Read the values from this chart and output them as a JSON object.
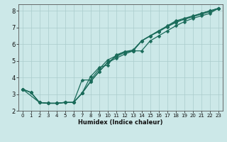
{
  "xlabel": "Humidex (Indice chaleur)",
  "bg_color": "#cce8e8",
  "grid_color": "#aacccc",
  "line_color": "#1a6b5a",
  "xlim": [
    -0.5,
    23.5
  ],
  "ylim": [
    2.0,
    8.4
  ],
  "xticks": [
    0,
    1,
    2,
    3,
    4,
    5,
    6,
    7,
    8,
    9,
    10,
    11,
    12,
    13,
    14,
    15,
    16,
    17,
    18,
    19,
    20,
    21,
    22,
    23
  ],
  "yticks": [
    2,
    3,
    4,
    5,
    6,
    7,
    8
  ],
  "line1_x": [
    0,
    1,
    2,
    3,
    4,
    5,
    6,
    7,
    8,
    9,
    10,
    11,
    12,
    13,
    14,
    15,
    16,
    17,
    18,
    19,
    20,
    21,
    22,
    23
  ],
  "line1_y": [
    3.3,
    3.1,
    2.5,
    2.45,
    2.45,
    2.5,
    2.5,
    3.05,
    3.75,
    4.35,
    4.9,
    5.15,
    5.4,
    5.6,
    6.2,
    6.5,
    6.8,
    7.1,
    7.4,
    7.55,
    7.7,
    7.85,
    8.0,
    8.15
  ],
  "line2_x": [
    0,
    2,
    3,
    4,
    5,
    6,
    7,
    8,
    9,
    10,
    11,
    12,
    13,
    14,
    15,
    16,
    17,
    18,
    19,
    20,
    21,
    22,
    23
  ],
  "line2_y": [
    3.3,
    2.5,
    2.45,
    2.45,
    2.5,
    2.5,
    3.85,
    3.85,
    4.5,
    5.05,
    5.3,
    5.55,
    5.6,
    5.6,
    6.2,
    6.5,
    6.8,
    7.1,
    7.35,
    7.55,
    7.7,
    7.85,
    8.15
  ],
  "line3_x": [
    0,
    1,
    2,
    3,
    4,
    5,
    6,
    7,
    8,
    9,
    10,
    11,
    12,
    13,
    14,
    15,
    16,
    17,
    18,
    19,
    20,
    21,
    22,
    23
  ],
  "line3_y": [
    3.3,
    3.1,
    2.5,
    2.45,
    2.45,
    2.5,
    2.5,
    3.05,
    4.05,
    4.6,
    4.75,
    5.35,
    5.55,
    5.65,
    6.2,
    6.5,
    6.75,
    7.05,
    7.35,
    7.5,
    7.65,
    7.85,
    8.0,
    8.15
  ],
  "line4_x": [
    0,
    1,
    2,
    3,
    4,
    5,
    6,
    7,
    8,
    9,
    10,
    11,
    12,
    13,
    14,
    15,
    16,
    17,
    18,
    19,
    20,
    21,
    22,
    23
  ],
  "line4_y": [
    3.3,
    3.1,
    2.5,
    2.45,
    2.45,
    2.5,
    2.5,
    3.05,
    3.75,
    4.35,
    4.9,
    5.25,
    5.5,
    5.6,
    6.2,
    6.5,
    6.8,
    7.05,
    7.3,
    7.5,
    7.65,
    7.8,
    7.95,
    8.15
  ]
}
